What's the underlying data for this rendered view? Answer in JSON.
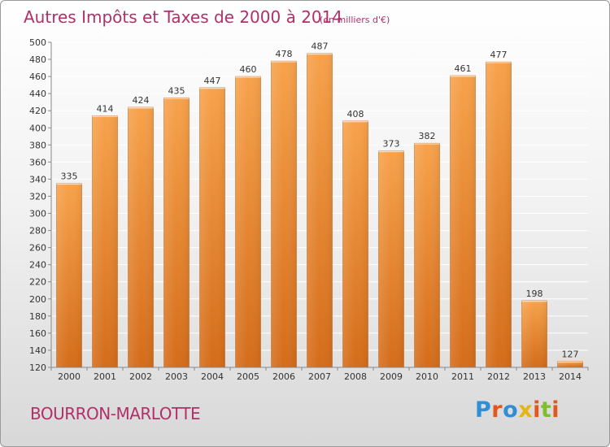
{
  "colors": {
    "title": "#b0306a",
    "bar_light": "#f7a24b",
    "bar_dark": "#d8701e",
    "label": "#333333"
  },
  "chart_data": {
    "type": "bar",
    "title": "Autres Impôts et Taxes de 2000 à 2014",
    "subtitle": "(en milliers d'€)",
    "categories": [
      "2000",
      "2001",
      "2002",
      "2003",
      "2004",
      "2005",
      "2006",
      "2007",
      "2008",
      "2009",
      "2010",
      "2011",
      "2012",
      "2013",
      "2014"
    ],
    "values": [
      335,
      414,
      424,
      435,
      447,
      460,
      478,
      487,
      408,
      373,
      382,
      461,
      477,
      198,
      127
    ],
    "ylim": [
      120,
      500
    ],
    "yticks": [
      120,
      140,
      160,
      180,
      200,
      220,
      240,
      260,
      280,
      300,
      320,
      340,
      360,
      380,
      400,
      420,
      440,
      460,
      480,
      500
    ],
    "grid": true,
    "data_labels": true
  },
  "footer": {
    "place_name": "BOURRON-MARLOTTE",
    "logo_text": "Proxiti"
  }
}
